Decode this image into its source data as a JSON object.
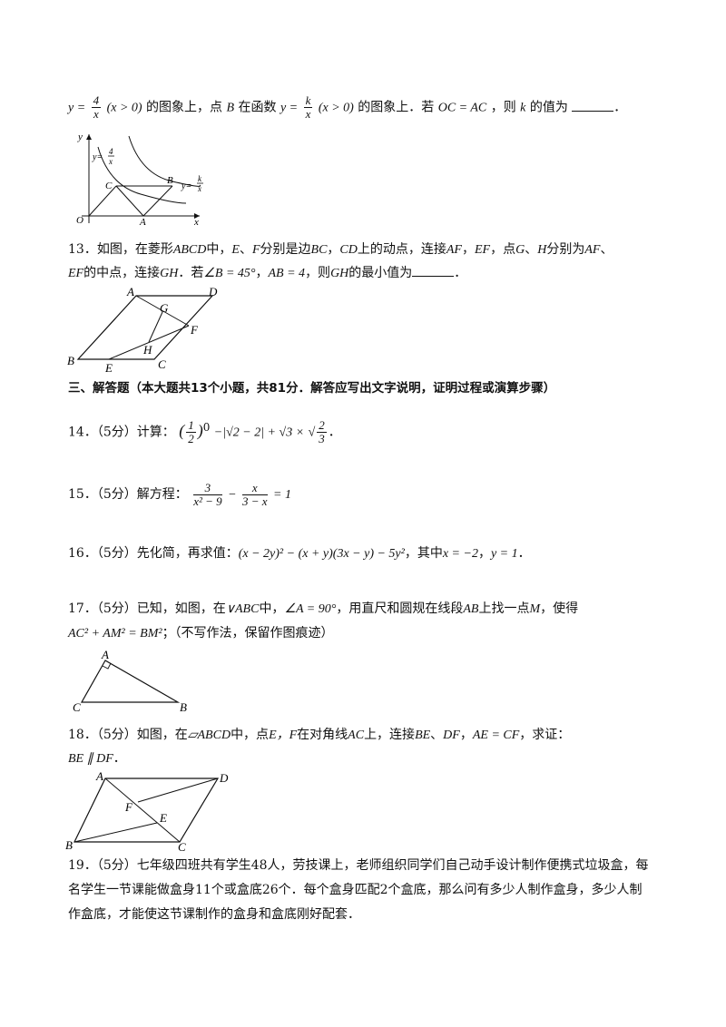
{
  "q12": {
    "part1": "的图象上，点",
    "part2": "在函数",
    "part3": "的图象上．若",
    "part4": "，则",
    "part5": "的值为",
    "end": "．",
    "func1": "y =",
    "func1_num": "4",
    "func1_den": "x",
    "domain": "(x > 0)",
    "func2": "y =",
    "func2_num": "k",
    "func2_den": "x",
    "cond": "OC = AC",
    "B": "B",
    "k": "k",
    "fig": {
      "y": "y",
      "x": "x",
      "O": "O",
      "A": "A",
      "B": "B",
      "C": "C",
      "curve1_label": "y=",
      "curve1_num": "4",
      "curve1_den": "x",
      "curve2_label": "y=",
      "curve2_num": "k",
      "curve2_den": "x"
    }
  },
  "q13": {
    "line1": "13．如图，在菱形",
    "ABCD": "ABCD",
    "mid1": "中，",
    "E": "E",
    "sep": "、",
    "F": "F",
    "mid2": "分别是边",
    "BC": "BC",
    "comma": "，",
    "CD": "CD",
    "mid3": "上的动点，连接",
    "AF": "AF",
    "EF": "EF",
    "mid4": "，点",
    "G": "G",
    "H": "H",
    "mid5": "分别为",
    "line2_EF": "EF",
    "line2a": "的中点，连接",
    "GH": "GH",
    "line2b": "．若",
    "angle": "∠B = 45°",
    "ab": "AB = 4",
    "line2c": "，则",
    "GH2": "GH",
    "line2d": "的最小值为",
    "end": "．",
    "fig": {
      "A": "A",
      "B": "B",
      "C": "C",
      "D": "D",
      "E": "E",
      "F": "F",
      "G": "G",
      "H": "H"
    }
  },
  "section3": "三、解答题（本大题共13个小题，共81分．解答应写出文字说明，证明过程或演算步骤）",
  "q14": {
    "label": "14．（5分）计算：",
    "expr": "−|√2 − 2| + √3 ×",
    "half_num": "1",
    "half_den": "2",
    "exp": "0",
    "r_num": "2",
    "r_den": "3",
    "end": "．"
  },
  "q15": {
    "label": "15．（5分）解方程：",
    "f1_num": "3",
    "f1_den": "x² − 9",
    "minus": "−",
    "f2_num": "x",
    "f2_den": "3 − x",
    "rhs": "= 1"
  },
  "q16": {
    "label": "16．（5分）先化简，再求值：",
    "expr": "(x − 2y)² − (x + y)(3x − y) − 5y²",
    "mid": "，其中",
    "x": "x = −2",
    "comma": "，",
    "y": "y = 1",
    "end": "．"
  },
  "q17": {
    "label": "17．（5分）已知，如图，在",
    "tri": "∨ABC",
    "mid1": "中，",
    "angle": "∠A = 90°",
    "mid2": "，用直尺和圆规在线段",
    "AB": "AB",
    "mid3": "上找一点",
    "M": "M",
    "mid4": "，使得",
    "eq": "AC² + AM² = BM²",
    "note": "；（不写作法，保留作图痕迹）",
    "fig": {
      "A": "A",
      "B": "B",
      "C": "C"
    }
  },
  "q18": {
    "label": "18．（5分）如图，在",
    "par": "▱ABCD",
    "mid1": "中，点",
    "EF": "E，F",
    "mid2": "在对角线",
    "AC": "AC",
    "mid3": "上，连接",
    "BE": "BE",
    "sep": "、",
    "DF": "DF",
    "comma": "，",
    "cond": "AE = CF",
    "mid4": "，求证：",
    "concl": "BE ∥ DF",
    "end": "．",
    "fig": {
      "A": "A",
      "B": "B",
      "C": "C",
      "D": "D",
      "E": "E",
      "F": "F"
    }
  },
  "q19": {
    "line1": "19．（5分）七年级四班共有学生48人，劳技课上，老师组织同学们自己动手设计制作便携式垃圾盒，每",
    "line2": "名学生一节课能做盒身11个或盒底26个．每个盒身匹配2个盒底，那么问有多少人制作盒身，多少人制",
    "line3": "作盒底，才能使这节课制作的盒身和盒底刚好配套．"
  }
}
